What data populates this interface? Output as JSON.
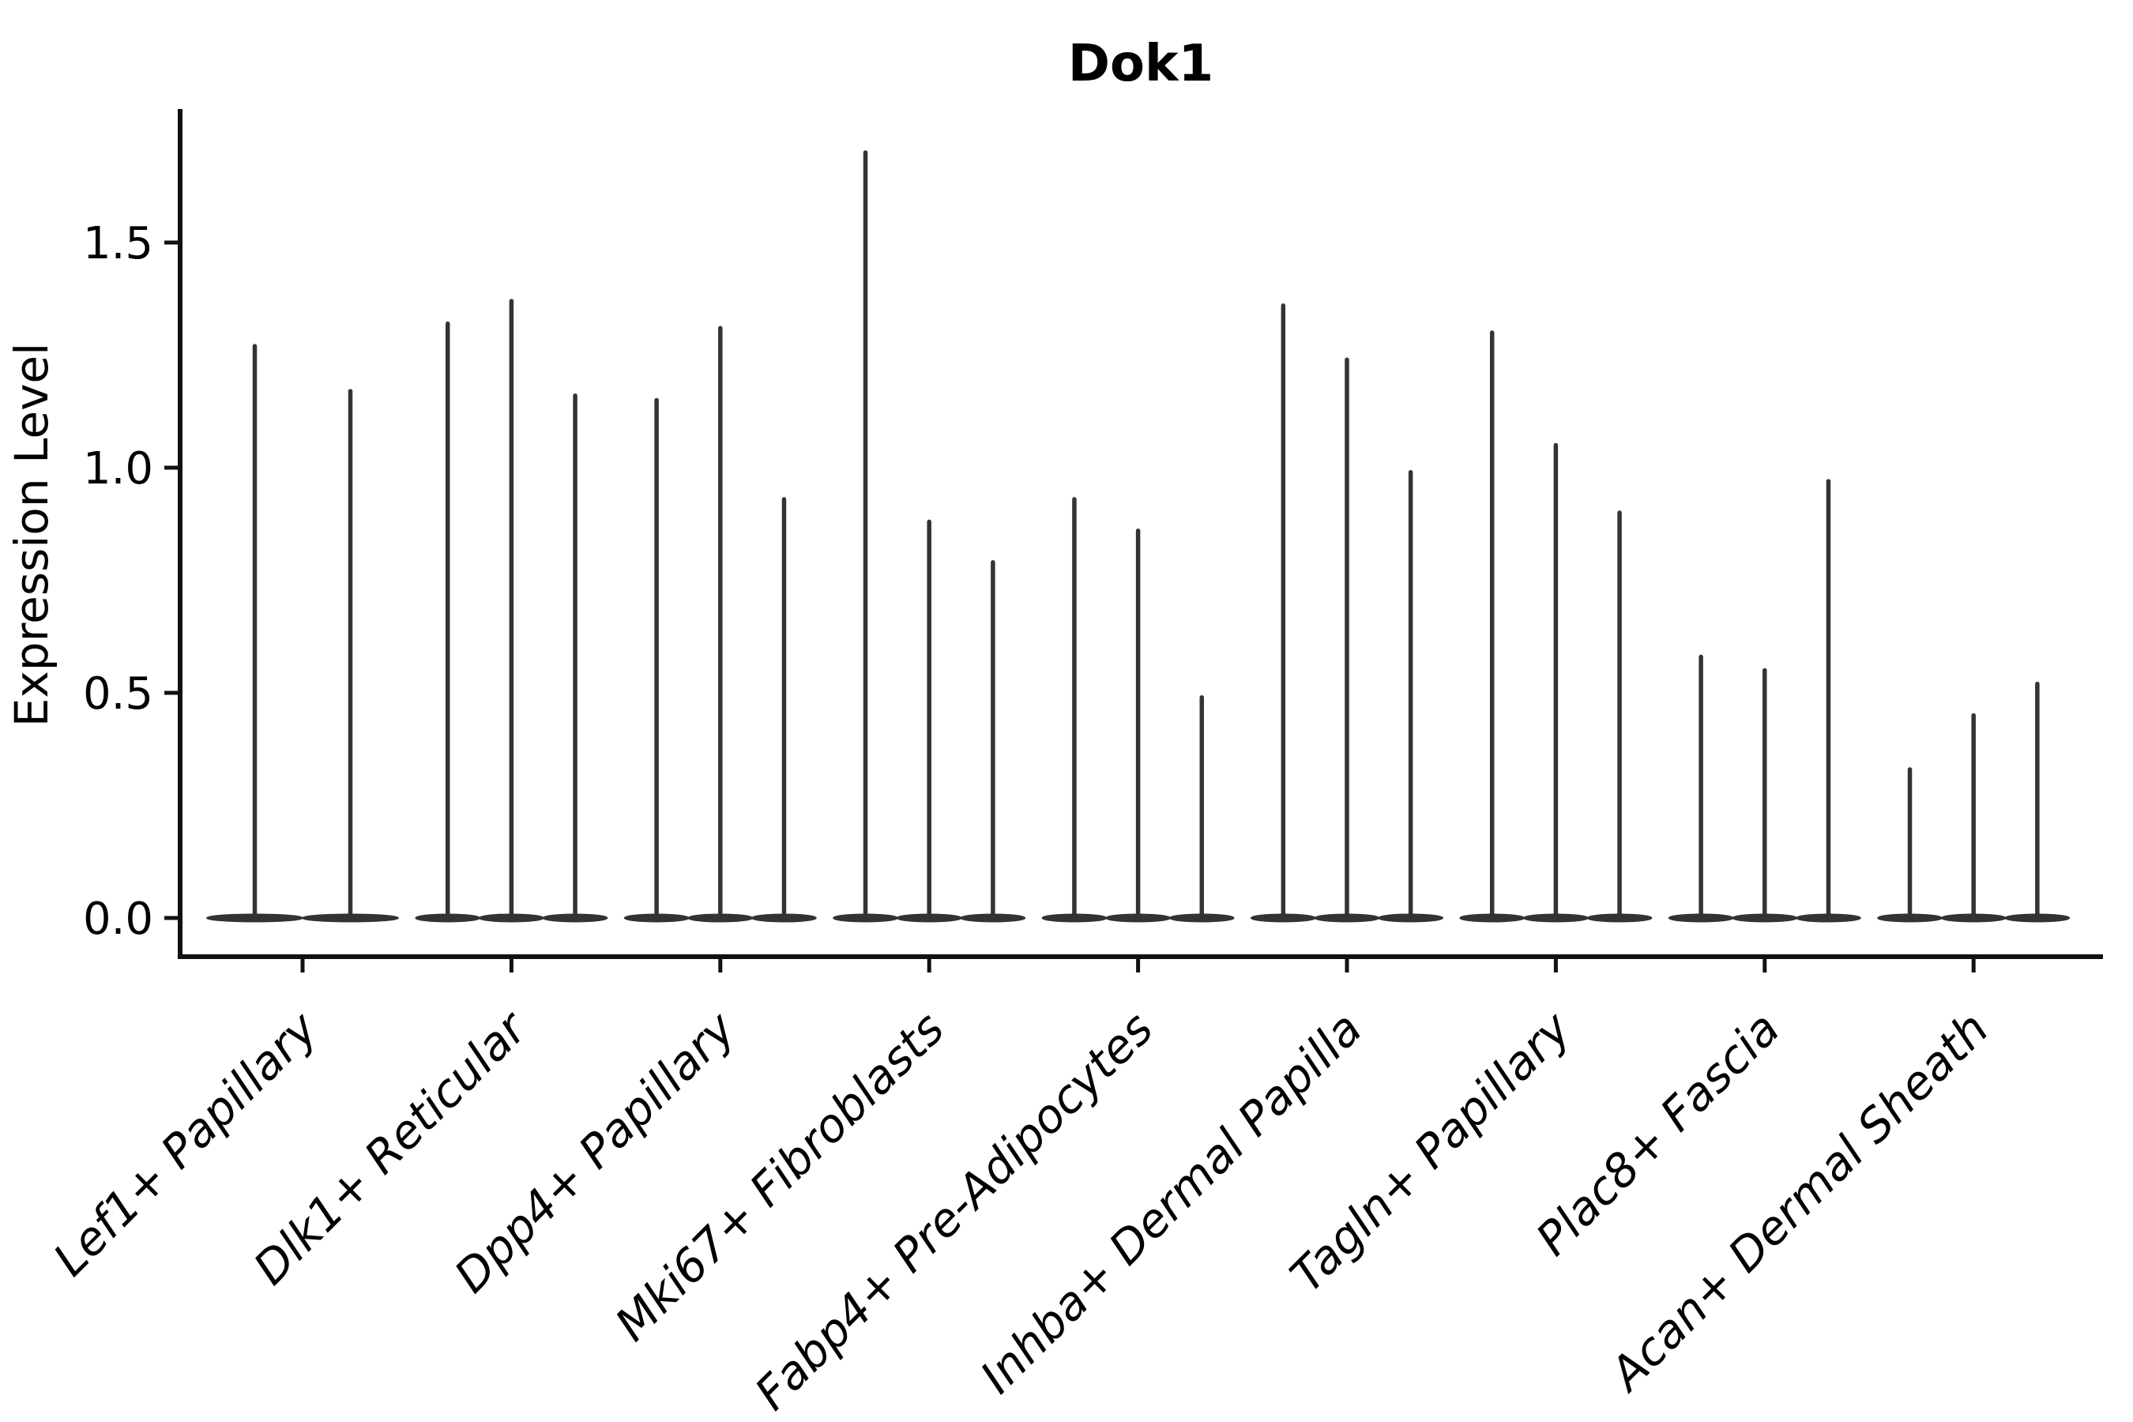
{
  "chart_data": {
    "type": "violin",
    "title": "Dok1",
    "ylabel": "Expression Level",
    "xlabel": "",
    "categories": [
      "Lef1+ Papillary",
      "Dlk1+ Reticular",
      "Dpp4+ Papillary",
      "Mki67+ Fibroblasts",
      "Fabp4+ Pre-Adipocytes",
      "Inhba+ Dermal Papilla",
      "Tagln+ Papillary",
      "Plac8+ Fascia",
      "Acan+ Dermal Sheath"
    ],
    "violin_max_values_per_category": [
      [
        1.27,
        1.17
      ],
      [
        1.32,
        1.37,
        1.16
      ],
      [
        1.15,
        1.31,
        0.93
      ],
      [
        1.7,
        0.88,
        0.79
      ],
      [
        0.93,
        0.86,
        0.49
      ],
      [
        1.36,
        1.24,
        0.99
      ],
      [
        1.3,
        1.05,
        0.9
      ],
      [
        0.58,
        0.55,
        0.97
      ],
      [
        0.33,
        0.45,
        0.52
      ]
    ],
    "violin_shape_note": "each violin is a needle: flat lens-shaped base at 0 with a thin spike up to its max value",
    "ytick_labels": [
      "0.0",
      "0.5",
      "1.0",
      "1.5"
    ],
    "ytick_values": [
      0,
      0.5,
      1.0,
      1.5
    ],
    "ylim": [
      0,
      1.8
    ],
    "grid": false,
    "legend": "none",
    "x_tick_label_rotation_deg": 45,
    "colors": {
      "violin": "#333333",
      "axis": "#111111",
      "text": "#000000",
      "background": "#ffffff"
    }
  }
}
